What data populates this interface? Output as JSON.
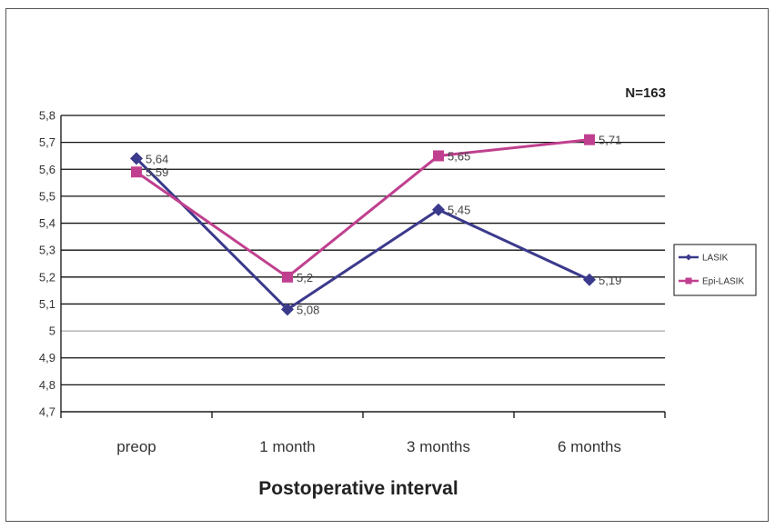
{
  "chart_data": {
    "type": "line",
    "annotation": "N=163",
    "xlabel": "Postoperative interval",
    "ylabel": "",
    "categories": [
      "preop",
      "1 month",
      "3 months",
      "6 months"
    ],
    "ylim": [
      4.7,
      5.8
    ],
    "yticks": [
      "5,8",
      "5,7",
      "5,6",
      "5,5",
      "5,4",
      "5,3",
      "5,2",
      "5,1",
      "5",
      "4,9",
      "4,8",
      "4,7"
    ],
    "grid": true,
    "legend_position": "right",
    "series": [
      {
        "name": "LASIK",
        "values": [
          5.64,
          5.08,
          5.45,
          5.19
        ],
        "labels": [
          "5,64",
          "5,08",
          "5,45",
          "5,19"
        ],
        "color": "#3b3a8c",
        "marker": "diamond"
      },
      {
        "name": "Epi-LASIK",
        "values": [
          5.59,
          5.2,
          5.65,
          5.71
        ],
        "labels": [
          "5,59",
          "5,2",
          "5,65",
          "5,71"
        ],
        "color": "#c0408f",
        "marker": "square"
      }
    ]
  }
}
